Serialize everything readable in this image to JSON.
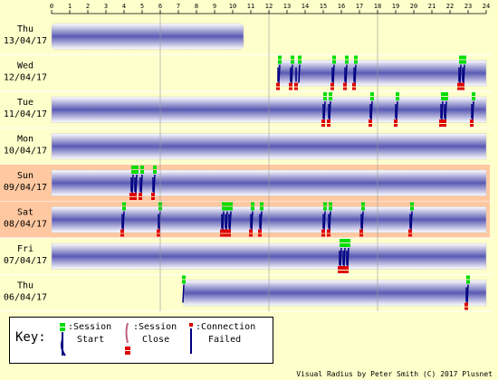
{
  "chart_data": {
    "type": "timeline",
    "x_ticks": [
      "0",
      "1",
      "2",
      "3",
      "4",
      "5",
      "6",
      "7",
      "8",
      "9",
      "10",
      "11",
      "12",
      "13",
      "14",
      "15",
      "16",
      "17",
      "18",
      "19",
      "20",
      "21",
      "22",
      "23",
      "24"
    ],
    "xlim": [
      0,
      24
    ],
    "rows": [
      {
        "day": "Thu",
        "date": "13/04/17",
        "weekend": false,
        "connected": [
          [
            0,
            10.6
          ]
        ],
        "session_start": [],
        "session_close": []
      },
      {
        "day": "Wed",
        "date": "12/04/17",
        "weekend": false,
        "connected": [
          [
            12.5,
            24
          ]
        ],
        "session_start": [
          12.6,
          13.3,
          13.7,
          15.6,
          16.3,
          16.8,
          22.6,
          22.8
        ],
        "session_close": [
          12.5,
          13.2,
          13.5,
          15.5,
          16.2,
          16.7,
          22.5,
          22.7
        ]
      },
      {
        "day": "Tue",
        "date": "11/04/17",
        "weekend": false,
        "connected": [
          [
            0,
            24
          ]
        ],
        "session_start": [
          15.1,
          15.4,
          17.7,
          19.1,
          21.6,
          21.8,
          23.3
        ],
        "session_close": [
          15.0,
          15.3,
          17.6,
          19.0,
          21.5,
          21.7,
          23.2
        ]
      },
      {
        "day": "Mon",
        "date": "10/04/17",
        "weekend": false,
        "connected": [
          [
            0,
            24
          ]
        ],
        "session_start": [],
        "session_close": []
      },
      {
        "day": "Sun",
        "date": "09/04/17",
        "weekend": true,
        "connected": [
          [
            0,
            24
          ]
        ],
        "session_start": [
          4.5,
          4.7,
          5.0,
          5.7
        ],
        "session_close": [
          4.4,
          4.6,
          4.9,
          5.6
        ]
      },
      {
        "day": "Sat",
        "date": "08/04/17",
        "weekend": true,
        "connected": [
          [
            0,
            24
          ]
        ],
        "session_start": [
          4.0,
          6.0,
          9.5,
          9.7,
          9.9,
          11.1,
          11.6,
          15.1,
          15.4,
          17.2,
          19.9
        ],
        "session_close": [
          3.9,
          5.9,
          9.4,
          9.6,
          9.8,
          11.0,
          11.5,
          15.0,
          15.3,
          17.1,
          19.8
        ]
      },
      {
        "day": "Fri",
        "date": "07/04/17",
        "weekend": false,
        "connected": [
          [
            0,
            24
          ]
        ],
        "session_start": [
          16.0,
          16.2,
          16.4
        ],
        "session_close": [
          15.9,
          16.1,
          16.3
        ]
      },
      {
        "day": "Thu",
        "date": "06/04/17",
        "weekend": false,
        "connected": [
          [
            7.3,
            24
          ]
        ],
        "session_start": [
          7.3,
          23.0
        ],
        "session_close": [
          22.9
        ]
      }
    ]
  },
  "key": {
    "title": "Key:",
    "items": [
      {
        "line1": ":Session",
        "line2": "Start"
      },
      {
        "line1": ":Session",
        "line2": "Close"
      },
      {
        "line1": ":Connection",
        "line2": "Failed"
      }
    ]
  },
  "footer": "Visual Radius by Peter Smith (C) 2017 Plusnet",
  "colors": {
    "background": "#ffffcc",
    "weekend_row": "#ffc8a0",
    "bar_edge": "#ffffff",
    "bar_mid": "#5a5ab4",
    "start_marker": "#00dd00",
    "close_marker": "#dd0000",
    "stem": "#000080",
    "gridline": "#999999"
  }
}
